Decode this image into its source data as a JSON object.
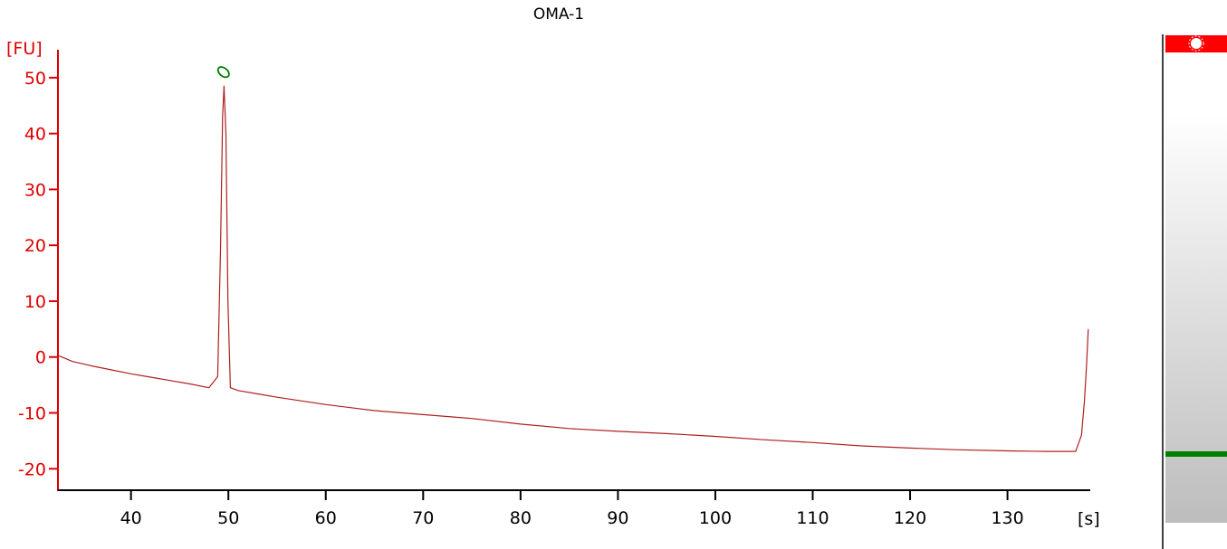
{
  "chart_data": {
    "type": "line",
    "title": "OMA-1",
    "y_unit": "[FU]",
    "x_unit": "[s]",
    "xlim": [
      32.5,
      138.5
    ],
    "ylim": [
      -24,
      55
    ],
    "x_ticks": [
      40,
      50,
      60,
      70,
      80,
      90,
      100,
      110,
      120,
      130
    ],
    "y_ticks": [
      50,
      40,
      30,
      20,
      10,
      0,
      -10,
      -20
    ],
    "peak_marker": {
      "x": 49.5,
      "y": 51,
      "label": ""
    },
    "series": [
      {
        "color": "#b02020",
        "points": [
          [
            32.5,
            0.3
          ],
          [
            34,
            -0.8
          ],
          [
            36,
            -1.6
          ],
          [
            38,
            -2.3
          ],
          [
            40,
            -3.0
          ],
          [
            42,
            -3.6
          ],
          [
            44,
            -4.2
          ],
          [
            46,
            -4.8
          ],
          [
            48,
            -5.5
          ],
          [
            48.9,
            -3.5
          ],
          [
            49.2,
            20
          ],
          [
            49.4,
            43
          ],
          [
            49.55,
            48.5
          ],
          [
            49.75,
            40
          ],
          [
            49.95,
            10
          ],
          [
            50.2,
            -5.5
          ],
          [
            51,
            -6.0
          ],
          [
            53,
            -6.6
          ],
          [
            55,
            -7.2
          ],
          [
            60,
            -8.5
          ],
          [
            65,
            -9.6
          ],
          [
            70,
            -10.3
          ],
          [
            75,
            -11.0
          ],
          [
            80,
            -12.0
          ],
          [
            85,
            -12.8
          ],
          [
            90,
            -13.3
          ],
          [
            95,
            -13.7
          ],
          [
            100,
            -14.2
          ],
          [
            105,
            -14.8
          ],
          [
            110,
            -15.3
          ],
          [
            115,
            -15.9
          ],
          [
            120,
            -16.3
          ],
          [
            125,
            -16.6
          ],
          [
            130,
            -16.8
          ],
          [
            134,
            -16.9
          ],
          [
            137,
            -16.9
          ],
          [
            137.6,
            -14
          ],
          [
            137.9,
            -8
          ],
          [
            138.1,
            -2
          ],
          [
            138.3,
            5
          ]
        ]
      }
    ]
  },
  "gel_lane": {
    "marker_band_color": "#ff0000",
    "sample_band_color": "#008000",
    "background_top": "#ffffff",
    "background_bottom": "#bdbdbd"
  },
  "colors": {
    "axis_y": "#e00000",
    "axis_x": "#000000",
    "trace": "#b02020",
    "peak_marker": "#008000"
  }
}
